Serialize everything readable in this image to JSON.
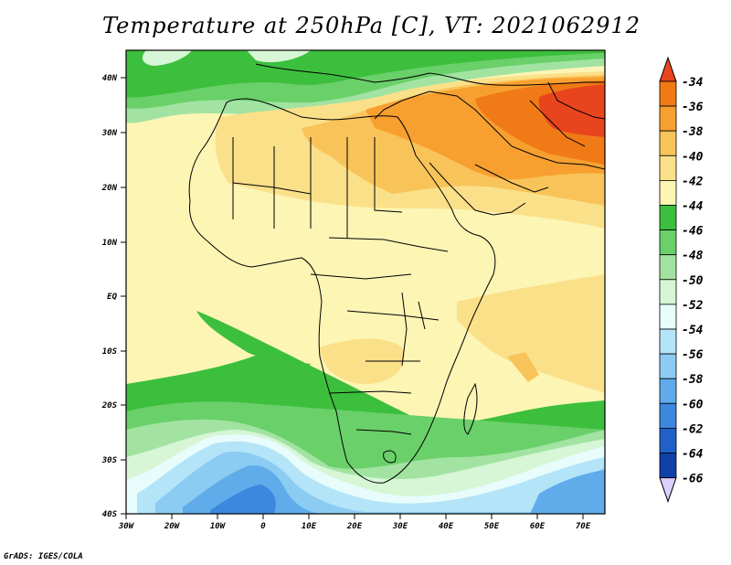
{
  "title": "Temperature at 250hPa [C], VT: 2021062912",
  "credit": "GrADS: IGES/COLA",
  "lat_labels": [
    "40N",
    "30N",
    "20N",
    "10N",
    "EQ",
    "10S",
    "20S",
    "30S",
    "40S"
  ],
  "lon_labels": [
    "30W",
    "20W",
    "10W",
    "0",
    "10E",
    "20E",
    "30E",
    "40E",
    "50E",
    "60E",
    "70E"
  ],
  "colorbar": {
    "labels": [
      "-34",
      "-36",
      "-38",
      "-40",
      "-42",
      "-44",
      "-46",
      "-48",
      "-50",
      "-52",
      "-54",
      "-56",
      "-58",
      "-60",
      "-62",
      "-64",
      "-66"
    ],
    "colors": [
      "#e8451e",
      "#f07a16",
      "#f7a030",
      "#f8c45a",
      "#fbe08a",
      "#fdf5b4",
      "#3cbf3c",
      "#6ad06a",
      "#a2e3a2",
      "#d6f6d6",
      "#e8fcfc",
      "#b4e4f8",
      "#8cccf2",
      "#60acea",
      "#3c88de",
      "#2060c8",
      "#1040a8",
      "#0a1478",
      "#dcd0ff"
    ]
  },
  "map": {
    "lon_range": [
      -30,
      75
    ],
    "lat_range": [
      -40,
      45
    ]
  }
}
